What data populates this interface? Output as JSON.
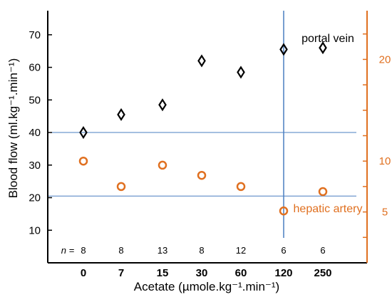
{
  "chart_data": {
    "type": "scatter",
    "title": "",
    "xlabel": "Acetate (µmole.kg⁻¹.min⁻¹)",
    "ylabel": "Blood flow (ml.kg⁻¹.min⁻¹)",
    "categories": [
      "0",
      "7",
      "15",
      "30",
      "60",
      "120",
      "250"
    ],
    "n_prefix": "n =",
    "n_values": [
      "8",
      "8",
      "13",
      "8",
      "12",
      "6",
      "6"
    ],
    "left_axis": {
      "ylim": [
        0,
        78
      ],
      "ticks": [
        10,
        20,
        30,
        40,
        50,
        60,
        70
      ],
      "color": "#000000"
    },
    "right_axis": {
      "ylim": [
        0,
        25
      ],
      "ticks": [
        5,
        10,
        20
      ],
      "minor_ticks": [
        2.5,
        7.5,
        12.5,
        15,
        17.5,
        22.5
      ],
      "color": "#e07020"
    },
    "series": [
      {
        "name": "portal vein",
        "axis": "left",
        "marker": "diamond",
        "color": "#000000",
        "values": [
          40,
          45.5,
          48.5,
          62,
          58.5,
          65.5,
          66
        ]
      },
      {
        "name": "hepatic artery",
        "axis": "right",
        "marker": "circle",
        "color": "#e07020",
        "values": [
          10,
          7.5,
          9.6,
          8.6,
          7.5,
          5.1,
          7
        ]
      }
    ],
    "reference_lines": {
      "horizontal_left": [
        40,
        20.5
      ],
      "vertical_category": "120",
      "color": "#4a7fc1"
    },
    "grid": false
  }
}
